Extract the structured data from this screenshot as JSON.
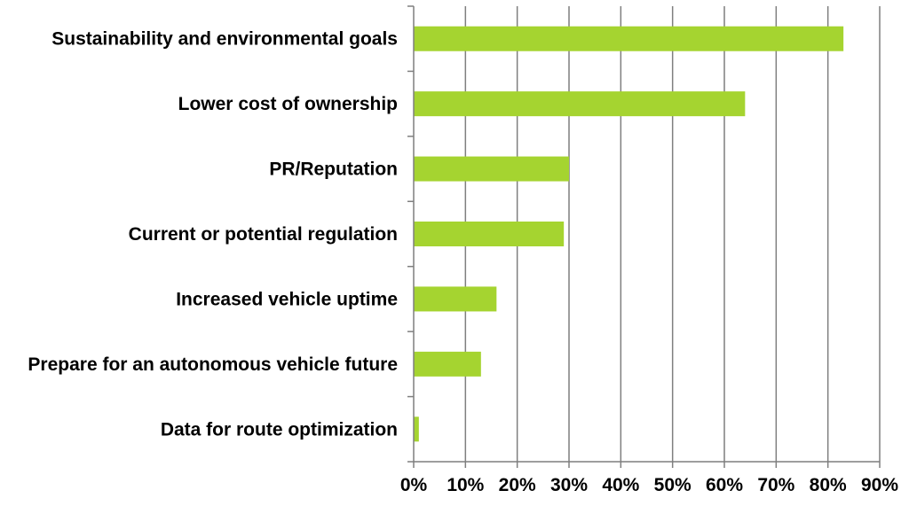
{
  "chart_data": {
    "type": "bar",
    "orientation": "horizontal",
    "categories": [
      "Sustainability and environmental goals",
      "Lower cost of ownership",
      "PR/Reputation",
      "Current or potential regulation",
      "Increased vehicle uptime",
      "Prepare for an autonomous vehicle future",
      "Data for route optimization"
    ],
    "values": [
      83,
      64,
      30,
      29,
      16,
      13,
      1
    ],
    "xlim": [
      0,
      90
    ],
    "x_ticks": [
      0,
      10,
      20,
      30,
      40,
      50,
      60,
      70,
      80,
      90
    ],
    "x_tick_labels": [
      "0%",
      "10%",
      "20%",
      "30%",
      "40%",
      "50%",
      "60%",
      "70%",
      "80%",
      "90%"
    ],
    "grid": "vertical",
    "legend": "none",
    "bar_color": "#a5d430",
    "grid_color": "#7f7f7f",
    "title": "",
    "xlabel": "",
    "ylabel": ""
  }
}
